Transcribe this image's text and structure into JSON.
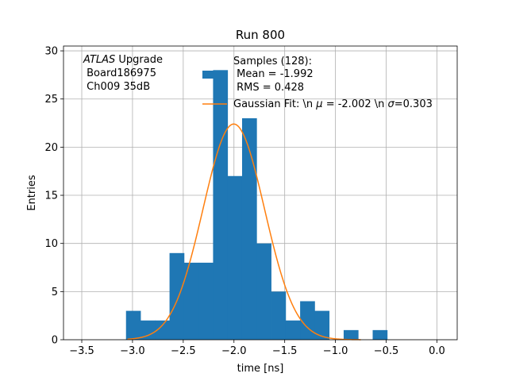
{
  "chart_data": {
    "type": "bar",
    "title": "Run 800",
    "xlabel": "time [ns]",
    "ylabel": "Entries",
    "xlim": [
      -3.68,
      0.2
    ],
    "ylim": [
      0,
      30.5
    ],
    "grid": true,
    "xticks": [
      -3.5,
      -3.0,
      -2.5,
      -2.0,
      -1.5,
      -1.0,
      -0.5,
      0.0
    ],
    "xtick_labels": [
      "−3.5",
      "−3.0",
      "−2.5",
      "−2.0",
      "−1.5",
      "−1.0",
      "−0.5",
      "0.0"
    ],
    "yticks": [
      0,
      5,
      10,
      15,
      20,
      25,
      30
    ],
    "ytick_labels": [
      "0",
      "5",
      "10",
      "15",
      "20",
      "25",
      "30"
    ],
    "bin_width": 0.143,
    "bins": [
      {
        "left": -3.064,
        "count": 3
      },
      {
        "left": -2.921,
        "count": 2
      },
      {
        "left": -2.778,
        "count": 2
      },
      {
        "left": -2.635,
        "count": 9
      },
      {
        "left": -2.492,
        "count": 8
      },
      {
        "left": -2.349,
        "count": 8
      },
      {
        "left": -2.206,
        "count": 28
      },
      {
        "left": -2.063,
        "count": 17
      },
      {
        "left": -1.92,
        "count": 23
      },
      {
        "left": -1.777,
        "count": 10
      },
      {
        "left": -1.634,
        "count": 5
      },
      {
        "left": -1.491,
        "count": 2
      },
      {
        "left": -1.348,
        "count": 4
      },
      {
        "left": -1.205,
        "count": 3
      },
      {
        "left": -1.062,
        "count": 0
      },
      {
        "left": -0.919,
        "count": 1
      },
      {
        "left": -0.776,
        "count": 0
      },
      {
        "left": -0.633,
        "count": 1
      }
    ],
    "series": [
      {
        "name": "Samples (128):\n Mean = -1.992\n RMS = 0.428",
        "color": "#1f77b4",
        "type": "histogram"
      },
      {
        "name": "Gaussian Fit: \\n μ = -2.002 \\n σ=0.303",
        "color": "#ff7f0e",
        "type": "line",
        "mu": -2.002,
        "sigma": 0.303,
        "amplitude": 22.4
      }
    ],
    "annotation": {
      "italic": "ATLAS",
      "line1_rest": " Upgrade",
      "line2": " Board186975",
      "line3": " Ch009 35dB"
    },
    "legend": {
      "placement": "top-center",
      "samples_lines": [
        "Samples (128):",
        " Mean = -1.992",
        " RMS = 0.428"
      ],
      "fit_prefix": "Gaussian Fit: \\n ",
      "fit_mu_symbol": "μ",
      "fit_mid": " = -2.002 \\n ",
      "fit_sigma_symbol": "σ",
      "fit_suffix": "=0.303"
    }
  }
}
